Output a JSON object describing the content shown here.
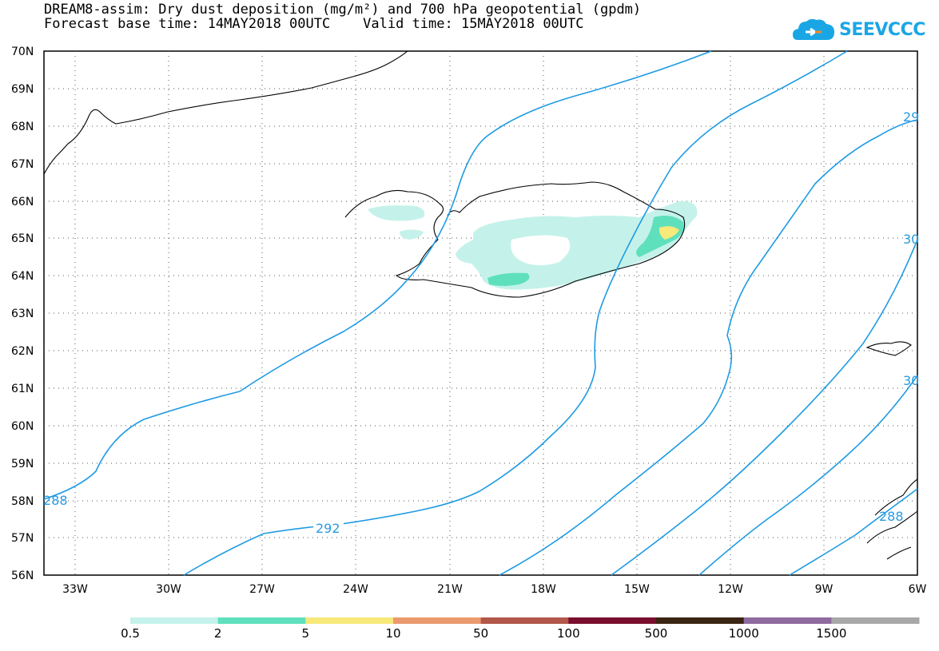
{
  "header": {
    "title_line1": "DREAM8-assim: Dry dust deposition (mg/m²) and 700 hPa geopotential (gpdm)",
    "title_line2": "Forecast base time: 14MAY2018 00UTC    Valid time: 15MAY2018 00UTC",
    "logo_text": "SEEVCCC"
  },
  "map": {
    "lat_labels": [
      "70N",
      "69N",
      "68N",
      "67N",
      "66N",
      "65N",
      "64N",
      "63N",
      "62N",
      "61N",
      "60N",
      "59N",
      "58N",
      "57N",
      "56N"
    ],
    "lon_labels": [
      "33W",
      "30W",
      "27W",
      "24W",
      "21W",
      "18W",
      "15W",
      "12W",
      "9W",
      "6W"
    ],
    "contour_labels": [
      "288",
      "292",
      "29",
      "30",
      "30",
      "288"
    ],
    "contour_color": "#1e9be3",
    "coastline_color": "#000000"
  },
  "colorbar": {
    "labels": [
      "0.5",
      "2",
      "5",
      "10",
      "50",
      "100",
      "500",
      "1000",
      "1500"
    ],
    "colors": [
      "#c4f2ea",
      "#5fe0bd",
      "#f7e97a",
      "#eb9a6f",
      "#b2574a",
      "#7a0e2e",
      "#3a2412",
      "#8e6aa0",
      "#a8a8a8"
    ]
  }
}
